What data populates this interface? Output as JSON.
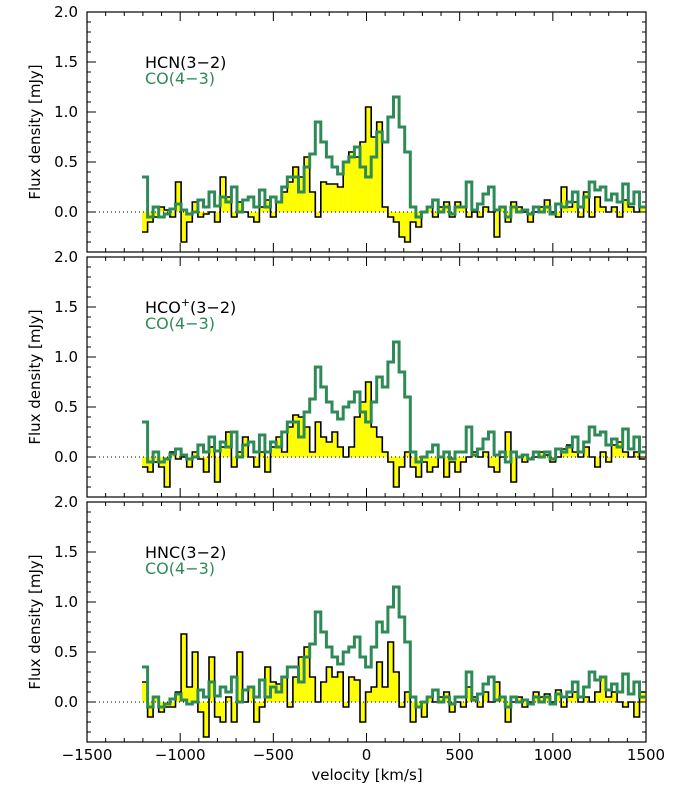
{
  "chart_data": {
    "type": "line",
    "xlabel": "velocity [km/s]",
    "ylabel": "Flux density [mJy]",
    "xlim": [
      -1500,
      1500
    ],
    "ylim": [
      -0.4,
      2.0
    ],
    "x_ticks": [
      -1500,
      -1000,
      -500,
      0,
      500,
      1000,
      1500
    ],
    "x_tick_labels": [
      "−1500",
      "−1000",
      "−500",
      "0",
      "500",
      "1000",
      "1500"
    ],
    "y_ticks": [
      0.0,
      0.5,
      1.0,
      1.5,
      2.0
    ],
    "y_tick_labels": [
      "0.0",
      "0.5",
      "1.0",
      "1.5",
      "2.0"
    ],
    "colors": {
      "fill": "#ffff00",
      "line": "#000000",
      "co": "#2e8b57",
      "zero": "#000000"
    },
    "co_series": {
      "name": "CO(4−3)",
      "x": [
        -1190,
        -1160,
        -1130,
        -1100,
        -1070,
        -1040,
        -1010,
        -980,
        -950,
        -920,
        -890,
        -860,
        -830,
        -800,
        -770,
        -740,
        -710,
        -680,
        -650,
        -620,
        -590,
        -560,
        -530,
        -500,
        -470,
        -440,
        -410,
        -380,
        -350,
        -320,
        -290,
        -260,
        -230,
        -200,
        -170,
        -140,
        -110,
        -80,
        -50,
        -20,
        10,
        40,
        70,
        100,
        130,
        160,
        190,
        220,
        250,
        280,
        310,
        340,
        370,
        400,
        430,
        460,
        490,
        520,
        550,
        580,
        610,
        640,
        670,
        700,
        730,
        760,
        790,
        820,
        850,
        880,
        910,
        940,
        970,
        1000,
        1030,
        1060,
        1090,
        1120,
        1150,
        1180,
        1210,
        1240,
        1270,
        1300,
        1330,
        1360,
        1390,
        1420,
        1450,
        1480
      ],
      "y": [
        0.35,
        -0.05,
        0.05,
        -0.05,
        -0.02,
        0.03,
        0.08,
        0.02,
        -0.02,
        0.0,
        0.12,
        0.05,
        0.2,
        0.06,
        0.15,
        0.1,
        0.25,
        0.0,
        0.12,
        0.15,
        0.05,
        0.22,
        0.05,
        0.15,
        0.1,
        0.25,
        0.35,
        0.35,
        0.2,
        0.45,
        0.58,
        0.9,
        0.7,
        0.55,
        0.45,
        0.38,
        0.5,
        0.55,
        0.65,
        0.45,
        0.35,
        0.55,
        0.8,
        0.7,
        0.95,
        1.15,
        0.85,
        0.6,
        0.05,
        -0.05,
        0.0,
        0.05,
        0.12,
        0.0,
        0.05,
        -0.02,
        0.05,
        0.05,
        0.3,
        0.02,
        0.08,
        0.18,
        0.25,
        0.02,
        0.05,
        -0.05,
        0.05,
        0.0,
        0.02,
        -0.02,
        0.05,
        0.0,
        0.05,
        -0.02,
        0.08,
        0.05,
        0.1,
        0.2,
        0.05,
        0.15,
        0.3,
        0.22,
        0.25,
        0.12,
        0.18,
        0.1,
        0.28,
        0.08,
        0.2,
        0.05
      ]
    },
    "panels": [
      {
        "label_main": "HCN(3−2)",
        "label_co": "CO(4−3)",
        "series_name": "HCN(3−2)",
        "x": [
          -1190,
          -1160,
          -1130,
          -1100,
          -1070,
          -1040,
          -1010,
          -980,
          -950,
          -920,
          -890,
          -860,
          -830,
          -800,
          -770,
          -740,
          -710,
          -680,
          -650,
          -620,
          -590,
          -560,
          -530,
          -500,
          -470,
          -440,
          -410,
          -380,
          -350,
          -320,
          -290,
          -260,
          -230,
          -200,
          -170,
          -140,
          -110,
          -80,
          -50,
          -20,
          10,
          40,
          70,
          100,
          130,
          160,
          190,
          220,
          250,
          280,
          310,
          340,
          370,
          400,
          430,
          460,
          490,
          520,
          550,
          580,
          610,
          640,
          670,
          700,
          730,
          760,
          790,
          820,
          850,
          880,
          910,
          940,
          970,
          1000,
          1030,
          1060,
          1090,
          1120,
          1150,
          1180,
          1210,
          1240,
          1270,
          1300,
          1330,
          1360,
          1390,
          1420,
          1450,
          1480
        ],
        "y": [
          -0.2,
          -0.1,
          -0.05,
          0.05,
          0.02,
          -0.05,
          0.3,
          -0.3,
          -0.1,
          0.1,
          -0.05,
          -0.02,
          0.0,
          -0.1,
          0.35,
          0.15,
          -0.05,
          0.1,
          0.0,
          -0.05,
          -0.1,
          0.05,
          0.12,
          -0.05,
          0.1,
          0.2,
          0.3,
          0.45,
          0.35,
          0.55,
          0.2,
          -0.05,
          0.3,
          0.28,
          0.28,
          0.25,
          0.5,
          0.6,
          0.55,
          0.7,
          1.05,
          0.75,
          0.9,
          0.05,
          -0.05,
          -0.1,
          -0.25,
          -0.3,
          -0.1,
          -0.15,
          0.0,
          0.05,
          -0.05,
          0.05,
          0.1,
          -0.05,
          0.1,
          0.05,
          -0.05,
          0.0,
          -0.05,
          0.05,
          0.0,
          -0.25,
          0.05,
          -0.1,
          0.1,
          0.05,
          0.0,
          -0.1,
          0.0,
          0.05,
          0.12,
          0.0,
          -0.05,
          0.25,
          0.05,
          0.1,
          -0.05,
          0.2,
          -0.05,
          0.15,
          0.05,
          0.0,
          0.05,
          -0.05,
          0.12,
          0.05,
          0.0,
          0.05
        ]
      },
      {
        "label_main": "HCO",
        "label_sup": "+",
        "label_suffix": "(3−2)",
        "label_co": "CO(4−3)",
        "series_name": "HCO+(3−2)",
        "x": [
          -1190,
          -1160,
          -1130,
          -1100,
          -1070,
          -1040,
          -1010,
          -980,
          -950,
          -920,
          -890,
          -860,
          -830,
          -800,
          -770,
          -740,
          -710,
          -680,
          -650,
          -620,
          -590,
          -560,
          -530,
          -500,
          -470,
          -440,
          -410,
          -380,
          -350,
          -320,
          -290,
          -260,
          -230,
          -200,
          -170,
          -140,
          -110,
          -80,
          -50,
          -20,
          10,
          40,
          70,
          100,
          130,
          160,
          190,
          220,
          250,
          280,
          310,
          340,
          370,
          400,
          430,
          460,
          490,
          520,
          550,
          580,
          610,
          640,
          670,
          700,
          730,
          760,
          790,
          820,
          850,
          880,
          910,
          940,
          970,
          1000,
          1030,
          1060,
          1090,
          1120,
          1150,
          1180,
          1210,
          1240,
          1270,
          1300,
          1330,
          1360,
          1390,
          1420,
          1450,
          1480
        ],
        "y": [
          -0.1,
          -0.15,
          -0.05,
          -0.1,
          -0.3,
          0.05,
          -0.02,
          0.0,
          -0.1,
          0.05,
          -0.02,
          -0.15,
          0.1,
          -0.25,
          0.1,
          0.25,
          -0.1,
          0.05,
          0.2,
          0.0,
          -0.1,
          0.05,
          -0.15,
          0.1,
          0.2,
          0.05,
          0.3,
          0.42,
          0.4,
          0.3,
          0.05,
          0.35,
          0.2,
          0.15,
          0.25,
          0.1,
          0.0,
          0.1,
          0.4,
          0.55,
          0.75,
          0.3,
          0.2,
          0.05,
          -0.05,
          -0.3,
          -0.1,
          0.05,
          -0.1,
          -0.2,
          -0.05,
          -0.15,
          -0.1,
          0.0,
          -0.2,
          -0.05,
          -0.15,
          -0.05,
          0.0,
          0.05,
          0.0,
          0.05,
          -0.1,
          -0.15,
          0.0,
          0.25,
          -0.25,
          0.0,
          -0.05,
          -0.02,
          0.0,
          0.05,
          0.02,
          -0.05,
          0.0,
          0.08,
          0.12,
          0.05,
          0.0,
          0.1,
          0.0,
          -0.1,
          0.05,
          -0.05,
          0.12,
          0.15,
          0.05,
          0.0,
          0.05,
          -0.02
        ]
      },
      {
        "label_main": "HNC(3−2)",
        "label_co": "CO(4−3)",
        "series_name": "HNC(3−2)",
        "x": [
          -1190,
          -1160,
          -1130,
          -1100,
          -1070,
          -1040,
          -1010,
          -980,
          -950,
          -920,
          -890,
          -860,
          -830,
          -800,
          -770,
          -740,
          -710,
          -680,
          -650,
          -620,
          -590,
          -560,
          -530,
          -500,
          -470,
          -440,
          -410,
          -380,
          -350,
          -320,
          -290,
          -260,
          -230,
          -200,
          -170,
          -140,
          -110,
          -80,
          -50,
          -20,
          10,
          40,
          70,
          100,
          130,
          160,
          190,
          220,
          250,
          280,
          310,
          340,
          370,
          400,
          430,
          460,
          490,
          520,
          550,
          580,
          610,
          640,
          670,
          700,
          730,
          760,
          790,
          820,
          850,
          880,
          910,
          940,
          970,
          1000,
          1030,
          1060,
          1090,
          1120,
          1150,
          1180,
          1210,
          1240,
          1270,
          1300,
          1330,
          1360,
          1390,
          1420,
          1450,
          1480
        ],
        "y": [
          0.2,
          -0.15,
          0.05,
          -0.1,
          -0.05,
          -0.05,
          0.1,
          0.68,
          0.15,
          0.5,
          -0.1,
          -0.35,
          0.45,
          -0.15,
          -0.2,
          0.05,
          -0.2,
          0.5,
          0.0,
          0.15,
          -0.2,
          -0.05,
          0.35,
          0.2,
          0.18,
          0.25,
          -0.05,
          0.25,
          0.45,
          0.55,
          0.25,
          0.0,
          0.2,
          0.35,
          0.25,
          0.3,
          -0.05,
          0.25,
          0.22,
          -0.2,
          0.1,
          0.15,
          0.4,
          0.15,
          0.6,
          0.3,
          -0.05,
          0.1,
          -0.2,
          -0.05,
          -0.15,
          0.05,
          0.0,
          0.05,
          0.1,
          -0.1,
          0.0,
          -0.05,
          0.15,
          0.05,
          -0.05,
          0.1,
          0.0,
          0.2,
          0.05,
          -0.2,
          0.0,
          0.05,
          -0.05,
          0.0,
          0.1,
          0.05,
          0.08,
          0.0,
          0.12,
          -0.05,
          0.05,
          0.1,
          0.0,
          0.05,
          0.0,
          0.1,
          0.25,
          0.05,
          0.1,
          0.0,
          -0.05,
          0.0,
          -0.15,
          0.1
        ]
      }
    ]
  }
}
